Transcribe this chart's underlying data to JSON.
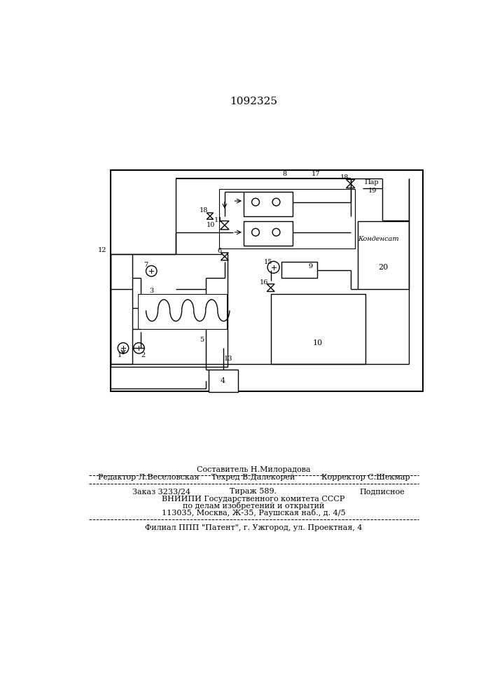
{
  "patent_number": "1092325",
  "background_color": "#ffffff",
  "line_color": "#000000",
  "fig_width": 7.07,
  "fig_height": 10.0,
  "footer": {
    "sestavitel_text": "Составитель Н.Милорадова",
    "redaktor_text": "Редактор Л.Веселовская",
    "tehred_text": "Техред В.Далекорей",
    "korrektor_text": "Корректор С.Шекмар",
    "zakaz_text": "Заказ 3233/24",
    "tirazh_text": "Тираж 589.",
    "podpisnoe_text": "Подписное",
    "vniip_text": "ВНИИПИ Государственного комитета СССР",
    "po_delam_text": "по делам изобретений и открытий",
    "address_text": "113035, Москва, Ж-35, Раушская наб., д. 4/5",
    "filial_text": "Филиал ППП \"Патент\", г. Ужгород, ул. Проектная, 4"
  },
  "par_text": "Пар",
  "kondensattext": "Конденсат"
}
